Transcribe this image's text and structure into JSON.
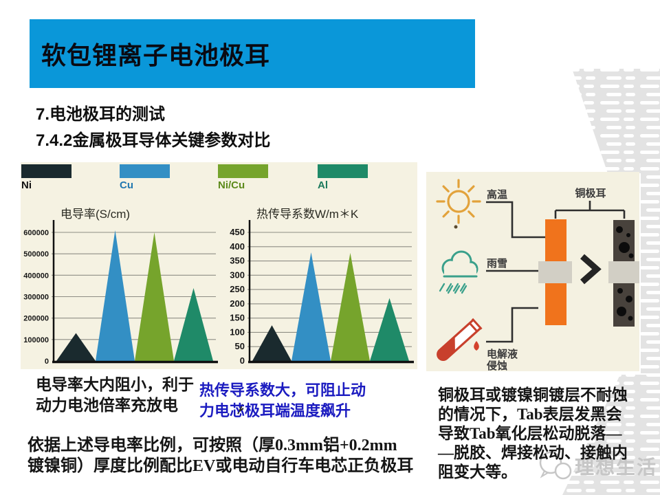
{
  "slide": {
    "title": "软包锂离子电池极耳",
    "subtitle1": "7.电池极耳的测试",
    "subtitle2": "7.4.2金属极耳导体关键参数对比"
  },
  "colors": {
    "header_blue": "#0a97d9",
    "panel_cream": "#f5f2e2",
    "blue_note_text": "#1b1bc0",
    "pattern_gray": "#e3e3e3",
    "orange_tab": "#f0731c",
    "corroded_tab": "#48423c",
    "seal_band_gray": "#d2cfc5",
    "watermark_gray": "#c6c6c6"
  },
  "legend": {
    "items": [
      {
        "label": "Ni",
        "swatch_color": "#1a2a2e",
        "label_color": "#111111"
      },
      {
        "label": "Cu",
        "swatch_color": "#338fc4",
        "label_color": "#2077b0"
      },
      {
        "label": "Ni/Cu",
        "swatch_color": "#76a42c",
        "label_color": "#5c8a1a"
      },
      {
        "label": "Al",
        "swatch_color": "#1f8a68",
        "label_color": "#1c7a5c"
      }
    ]
  },
  "chart_data": [
    {
      "type": "area",
      "title": "电导率(S/cm)",
      "categories": [
        "Ni",
        "Cu",
        "Ni/Cu",
        "Al"
      ],
      "values": [
        130000,
        610000,
        600000,
        340000
      ],
      "series_colors": [
        "#1a2a2e",
        "#338fc4",
        "#76a42c",
        "#1f8a68"
      ],
      "xlabel": "",
      "ylabel": "",
      "ylim": [
        0,
        600000
      ],
      "yticks": [
        "0",
        "100000",
        "200000",
        "300000",
        "400000",
        "500000",
        "600000"
      ],
      "grid": true,
      "legend_position": "top"
    },
    {
      "type": "area",
      "title": "热传导系数W/m＊K",
      "categories": [
        "Ni",
        "Cu",
        "Ni/Cu",
        "Al"
      ],
      "values": [
        125,
        380,
        378,
        220
      ],
      "series_colors": [
        "#1a2a2e",
        "#338fc4",
        "#76a42c",
        "#1f8a68"
      ],
      "xlabel": "",
      "ylabel": "",
      "ylim": [
        0,
        450
      ],
      "yticks": [
        "0",
        "50",
        "100",
        "150",
        "200",
        "250",
        "300",
        "350",
        "400",
        "450"
      ],
      "grid": true,
      "legend_position": "top"
    }
  ],
  "diagram": {
    "hot": "高温",
    "rain": "雨雪",
    "corrode1": "电解液",
    "corrode2": "侵蚀",
    "copper_tab": "铜极耳"
  },
  "notes": {
    "conductivity": [
      "电导率大内阻小，利于",
      "动力电池倍率充放电"
    ],
    "thermal": [
      "热传导系数大，可阻止动",
      "力电芯极耳端温度飙升"
    ],
    "ratio": [
      "依据上述导电率比例，可按照（厚0.3mm铝+0.2mm",
      "镀镍铜）厚度比例配比EV或电动自行车电芯正负极耳"
    ],
    "corrosion": [
      "铜极耳或镀镍铜镀层不耐蚀",
      "的情况下，Tab表层发黑会",
      "导致Tab氧化层松动脱落—",
      "—脱胶、焊接松动、接触内",
      "阻变大等。"
    ]
  },
  "watermark": {
    "text": "理想生活"
  }
}
